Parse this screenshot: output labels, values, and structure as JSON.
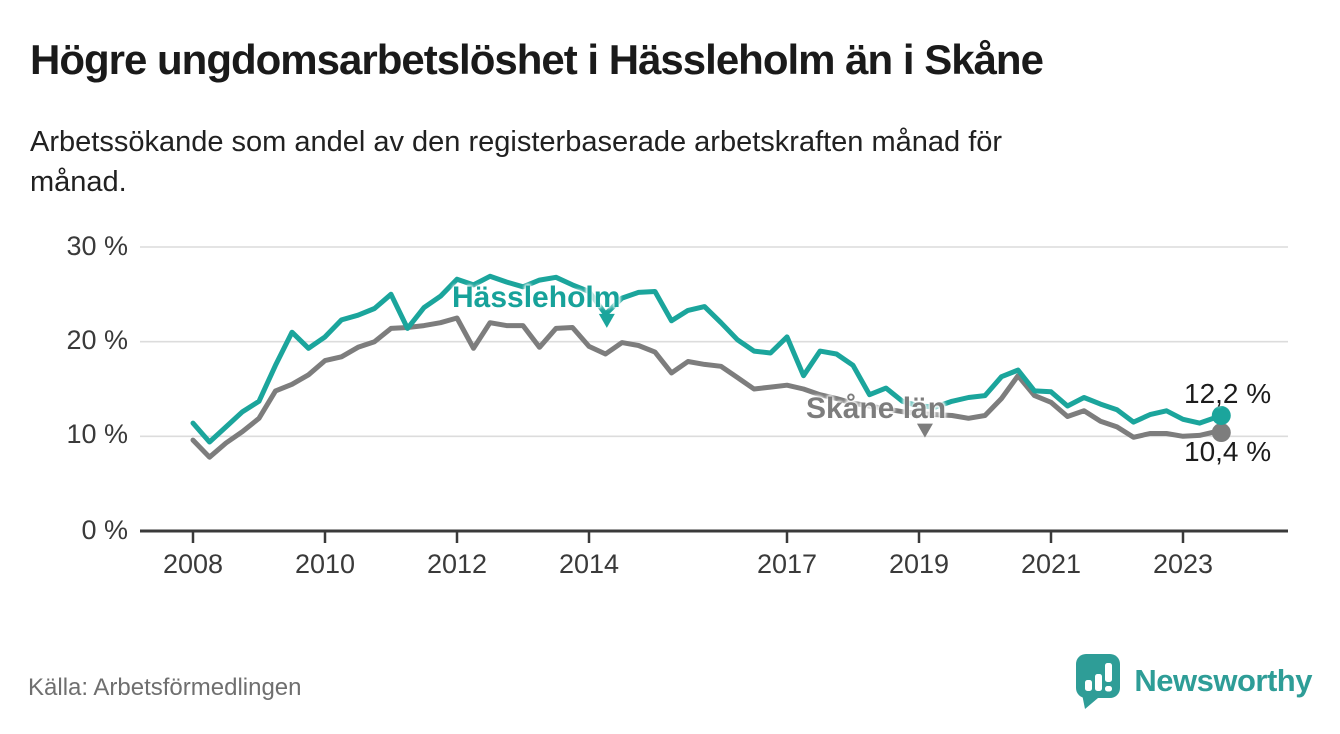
{
  "header": {
    "title": "Högre ungdomsarbetslöshet i Hässleholm än i Skåne",
    "subtitle": "Arbetssökande som andel av den registerbaserade arbetskraften månad för månad.",
    "subtitle_lines": [
      "Arbetssökande som andel av den registerbaserade arbetskraften månad för",
      "månad."
    ]
  },
  "chart_data": {
    "type": "line",
    "title": "Högre ungdomsarbetslöshet i Hässleholm än i Skåne",
    "xlabel": "",
    "ylabel": "",
    "x_unit": "year (monthly data, decimal years)",
    "ylim": [
      0,
      30
    ],
    "xlim": [
      2007.2,
      2024.6
    ],
    "grid": "horizontal",
    "legend": "inline-labels",
    "x": [
      2008,
      2008.25,
      2008.5,
      2008.75,
      2009,
      2009.25,
      2009.5,
      2009.75,
      2010,
      2010.25,
      2010.5,
      2010.75,
      2011,
      2011.25,
      2011.5,
      2011.75,
      2012,
      2012.25,
      2012.5,
      2012.75,
      2013,
      2013.25,
      2013.5,
      2013.75,
      2014,
      2014.25,
      2014.5,
      2014.75,
      2015,
      2015.25,
      2015.5,
      2015.75,
      2016,
      2016.25,
      2016.5,
      2016.75,
      2017,
      2017.25,
      2017.5,
      2017.75,
      2018,
      2018.25,
      2018.5,
      2018.75,
      2019,
      2019.25,
      2019.5,
      2019.75,
      2020,
      2020.25,
      2020.5,
      2020.75,
      2021,
      2021.25,
      2021.5,
      2021.75,
      2022,
      2022.25,
      2022.5,
      2022.75,
      2023,
      2023.25,
      2023.5,
      2023.58
    ],
    "series": [
      {
        "name": "Hässleholm",
        "color": "#1ba59c",
        "end_label": "12,2 %",
        "end_value": 12.2,
        "values": [
          11.4,
          9.4,
          11,
          12.6,
          13.7,
          17.5,
          21,
          19.3,
          20.5,
          22.3,
          22.8,
          23.5,
          25,
          21.4,
          23.6,
          24.8,
          26.6,
          26,
          26.9,
          26.3,
          25.8,
          26.5,
          26.8,
          26,
          25.3,
          22.9,
          24.6,
          25.2,
          25.3,
          22.2,
          23.3,
          23.7,
          22,
          20.2,
          19,
          18.8,
          20.5,
          16.4,
          19,
          18.7,
          17.5,
          14.4,
          15.1,
          13.7,
          13.2,
          13.1,
          13.7,
          14.1,
          14.3,
          16.3,
          17,
          14.8,
          14.7,
          13.2,
          14.1,
          13.4,
          12.8,
          11.5,
          12.3,
          12.7,
          11.8,
          11.4,
          12,
          12.2
        ]
      },
      {
        "name": "Skåne län",
        "color": "#7d7d7d",
        "end_label": "10,4 %",
        "end_value": 10.4,
        "values": [
          9.6,
          7.8,
          9.3,
          10.5,
          11.9,
          14.8,
          15.5,
          16.5,
          18,
          18.4,
          19.4,
          20,
          21.4,
          21.5,
          21.7,
          22,
          22.5,
          19.3,
          22,
          21.7,
          21.7,
          19.4,
          21.4,
          21.5,
          19.5,
          18.7,
          19.9,
          19.6,
          18.9,
          16.7,
          17.9,
          17.6,
          17.4,
          16.2,
          15,
          15.2,
          15.4,
          15,
          14.4,
          14,
          13.5,
          13.2,
          12.9,
          12.6,
          12.4,
          12.3,
          12.2,
          11.9,
          12.2,
          14,
          16.4,
          14.3,
          13.6,
          12.1,
          12.7,
          11.6,
          11,
          9.9,
          10.3,
          10.3,
          10,
          10.1,
          10.5,
          10.4
        ]
      }
    ],
    "yticks": [
      {
        "value": 0,
        "label": "0 %"
      },
      {
        "value": 10,
        "label": "10 %"
      },
      {
        "value": 20,
        "label": "20 %"
      },
      {
        "value": 30,
        "label": "30 %"
      }
    ],
    "xticks": [
      {
        "value": 2008,
        "label": "2008"
      },
      {
        "value": 2010,
        "label": "2010"
      },
      {
        "value": 2012,
        "label": "2012"
      },
      {
        "value": 2014,
        "label": "2014"
      },
      {
        "value": 2017,
        "label": "2017"
      },
      {
        "value": 2019,
        "label": "2019"
      },
      {
        "value": 2021,
        "label": "2021"
      },
      {
        "value": 2023,
        "label": "2023"
      }
    ],
    "annotations": [
      {
        "type": "triangle-marker",
        "series": "Hässleholm",
        "x": 2014.27,
        "y": 22.2,
        "color": "#1ba59c"
      },
      {
        "type": "triangle-marker",
        "series": "Skåne län",
        "x": 2019.09,
        "y": 10.6,
        "color": "#7d7d7d"
      }
    ]
  },
  "colors": {
    "hassleholm": "#1ba59c",
    "skane": "#7d7d7d",
    "grid": "#dcdcdc",
    "axis": "#3a3a3a",
    "logo_teal": "#2e9d97"
  },
  "footer": {
    "source": "Källa: Arbetsförmedlingen",
    "logo_text": "Newsworthy"
  }
}
